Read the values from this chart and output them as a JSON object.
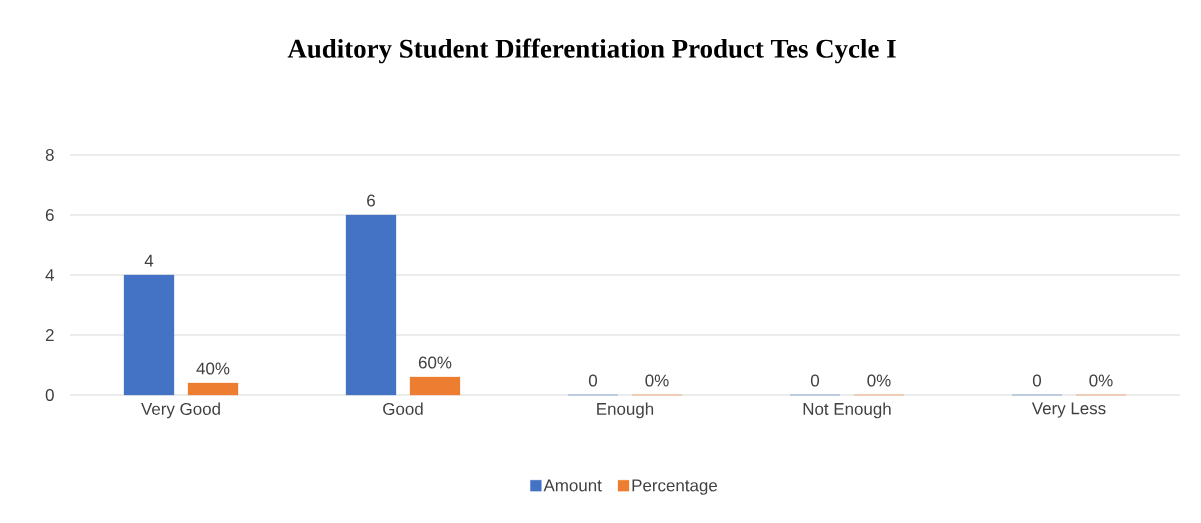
{
  "chart_data": {
    "type": "bar",
    "title": "Auditory Student Differentiation Product Tes Cycle I",
    "categories": [
      "Very Good",
      "Good",
      "Enough",
      "Not Enough",
      "Very Less"
    ],
    "series": [
      {
        "name": "Amount",
        "color": "#4472c4",
        "values": [
          4,
          6,
          0,
          0,
          0
        ],
        "value_labels": [
          "4",
          "6",
          "0",
          "0",
          "0"
        ]
      },
      {
        "name": "Percentage",
        "color": "#ed7d31",
        "values": [
          0.4,
          0.6,
          0,
          0,
          0
        ],
        "value_labels": [
          "40%",
          "60%",
          "0%",
          "0%",
          "0%"
        ]
      }
    ],
    "ylim": [
      0,
      8
    ],
    "yticks": [
      0,
      2,
      4,
      6,
      8
    ],
    "grid": "y",
    "legend": "bottom"
  }
}
